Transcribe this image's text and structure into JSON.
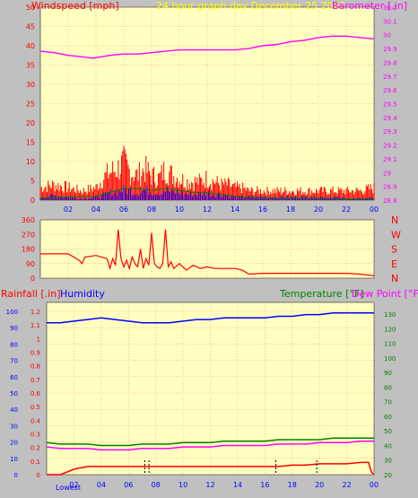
{
  "header": {
    "left_label": "Windspeed [mph]",
    "center_label": "24 hour graph day   December 25 2021",
    "right_label": "Barometer [.in]"
  },
  "colors": {
    "background": "#c0c0c0",
    "plot_bg": "#ffffc0",
    "grid": "#ff8080",
    "wind": "#ff0000",
    "gust_blue": "#0000ff",
    "gust_green": "#008000",
    "barometer": "#ff00ff",
    "direction": "#ff0000",
    "humidity": "#0000ff",
    "temperature": "#008000",
    "dewpoint": "#ff00ff",
    "rain": "#ff0000",
    "title_yellow": "#ffff00"
  },
  "chart_data": [
    {
      "type": "line",
      "panel": "wind_barometer",
      "x_ticks": [
        "02",
        "04",
        "06",
        "08",
        "10",
        "12",
        "14",
        "16",
        "18",
        "20",
        "22",
        "00"
      ],
      "y_left": {
        "label": "Windspeed [mph]",
        "ylim": [
          0,
          50
        ],
        "ticks": [
          "0",
          "5",
          "10",
          "15",
          "20",
          "25",
          "30",
          "35",
          "40",
          "45",
          "50"
        ]
      },
      "y_right": {
        "label": "Barometer [.in]",
        "ylim": [
          28.8,
          30.2
        ],
        "ticks": [
          "28.8",
          "28.9",
          "29",
          "29.1",
          "29.2",
          "29.3",
          "29.4",
          "29.5",
          "29.6",
          "29.7",
          "29.8",
          "29.9",
          "30",
          "30.1",
          "30.2"
        ]
      },
      "series": [
        {
          "name": "Barometer",
          "axis": "right",
          "x": [
            0,
            1,
            2,
            3,
            3.8,
            5,
            6,
            7,
            8,
            9,
            10,
            11,
            12,
            13,
            14,
            15,
            16,
            17,
            18,
            19,
            20,
            21,
            22,
            23,
            24
          ],
          "values": [
            29.88,
            29.87,
            29.85,
            29.84,
            29.83,
            29.85,
            29.86,
            29.86,
            29.87,
            29.88,
            29.89,
            29.89,
            29.89,
            29.89,
            29.89,
            29.9,
            29.92,
            29.93,
            29.95,
            29.96,
            29.98,
            29.99,
            29.99,
            29.98,
            29.97
          ]
        },
        {
          "name": "Windspeed",
          "axis": "left",
          "x": [
            0,
            1,
            2,
            3,
            4,
            4.5,
            5,
            5.5,
            6,
            6.5,
            7,
            7.5,
            8,
            8.5,
            9,
            9.5,
            10,
            10.5,
            11,
            11.5,
            12,
            12.5,
            13,
            13.5,
            14,
            14.5,
            15,
            16,
            17,
            18,
            19,
            20,
            21,
            22,
            23,
            24
          ],
          "values": [
            2,
            3,
            2,
            1,
            2,
            3,
            5,
            6,
            7,
            6,
            5,
            7,
            6,
            5,
            7,
            5,
            5,
            4,
            4,
            4,
            5,
            4,
            4,
            3,
            2,
            2,
            2,
            2,
            2,
            2,
            2,
            2,
            2,
            1,
            1,
            2
          ]
        },
        {
          "name": "Gust",
          "axis": "left",
          "x": [
            0,
            1,
            2,
            3,
            4,
            4.5,
            5,
            5.5,
            6,
            6.5,
            7,
            7.5,
            8,
            8.5,
            9,
            9.5,
            10,
            10.5,
            11,
            11.5,
            12,
            12.5,
            13,
            13.5,
            14,
            14.5,
            15,
            16,
            17,
            18,
            19,
            20,
            21,
            22,
            23,
            24
          ],
          "values": [
            4,
            5,
            4,
            3,
            4,
            7,
            9,
            10,
            12,
            9,
            8,
            10,
            8,
            7,
            10,
            8,
            7,
            6,
            6,
            6,
            7,
            6,
            5,
            5,
            4,
            4,
            3,
            3,
            3,
            3,
            3,
            3,
            3,
            3,
            3,
            4
          ]
        },
        {
          "name": "Average",
          "axis": "left",
          "x": [
            0,
            2,
            4,
            5,
            6,
            7,
            8,
            9,
            10,
            11,
            12,
            13,
            14,
            16,
            18,
            20,
            22,
            24
          ],
          "values": [
            0.5,
            0.8,
            1,
            2,
            3,
            3,
            2.5,
            3,
            2.5,
            2,
            2,
            1.5,
            1,
            0.5,
            0.5,
            0.5,
            0.3,
            0.3
          ]
        }
      ]
    },
    {
      "type": "line",
      "panel": "wind_direction",
      "x_ticks": [],
      "y_left": {
        "ylim": [
          0,
          360
        ],
        "ticks": [
          "0",
          "90",
          "180",
          "270",
          "360"
        ]
      },
      "y_right": {
        "ticks": [
          "N",
          "W",
          "S",
          "E",
          "N"
        ]
      },
      "series": [
        {
          "name": "Direction",
          "x": [
            0,
            2,
            2.8,
            3,
            3.2,
            4,
            4.8,
            5,
            5.2,
            5.4,
            5.6,
            5.8,
            6,
            6.2,
            6.4,
            6.6,
            6.8,
            7,
            7.2,
            7.4,
            7.6,
            7.8,
            8,
            8.2,
            8.4,
            8.6,
            8.8,
            9,
            9.2,
            9.4,
            9.6,
            10,
            10.5,
            11,
            11.5,
            12,
            12.5,
            13,
            14,
            14.5,
            15,
            16,
            17,
            18,
            19,
            20,
            21,
            22,
            23,
            24
          ],
          "values": [
            150,
            150,
            110,
            90,
            130,
            140,
            120,
            60,
            120,
            80,
            300,
            120,
            70,
            110,
            60,
            130,
            90,
            70,
            180,
            60,
            120,
            80,
            280,
            90,
            70,
            60,
            90,
            300,
            70,
            100,
            60,
            90,
            50,
            80,
            60,
            70,
            60,
            60,
            60,
            50,
            25,
            30,
            30,
            30,
            30,
            30,
            30,
            30,
            25,
            15
          ]
        }
      ]
    },
    {
      "type": "line",
      "panel": "rain_humidity_temperature",
      "labels": {
        "rainfall": "Rainfall [.in]",
        "humidity": "Humidity",
        "temperature": "Temperature [°F]",
        "dewpoint": "Dew Point [°F]",
        "lowest": "Lowest"
      },
      "x_ticks": [
        "02",
        "04",
        "06",
        "08",
        "10",
        "12",
        "14",
        "16",
        "18",
        "20",
        "22",
        "00"
      ],
      "y_humidity": {
        "ylim": [
          0,
          100
        ],
        "ticks": [
          "0",
          "10",
          "20",
          "30",
          "40",
          "50",
          "60",
          "70",
          "80",
          "90",
          "100"
        ]
      },
      "y_rain": {
        "ylim": [
          0,
          1.2
        ],
        "ticks": [
          "0",
          "0.1",
          "0.2",
          "0.3",
          "0.4",
          "0.5",
          "0.6",
          "0.7",
          "0.8",
          "0.9",
          "1",
          "1.1",
          "1.2"
        ]
      },
      "y_temperature": {
        "ylim": [
          20,
          135
        ],
        "ticks": [
          "20",
          "30",
          "40",
          "50",
          "60",
          "70",
          "80",
          "90",
          "100",
          "110",
          "120",
          "130"
        ]
      },
      "series": [
        {
          "name": "Humidity",
          "x": [
            0,
            1,
            2,
            3,
            4,
            5,
            6,
            7,
            8,
            9,
            10,
            11,
            12,
            13,
            14,
            15,
            16,
            17,
            18,
            19,
            20,
            21,
            22,
            23,
            24
          ],
          "values": [
            93,
            93,
            94,
            95,
            96,
            95,
            94,
            93,
            93,
            93,
            94,
            95,
            95,
            96,
            96,
            96,
            96,
            97,
            97,
            98,
            98,
            99,
            99,
            99,
            99
          ]
        },
        {
          "name": "Temperature",
          "x": [
            0,
            1,
            2,
            3,
            4,
            5,
            6,
            7,
            8,
            9,
            10,
            11,
            12,
            13,
            14,
            15,
            16,
            17,
            18,
            19,
            20,
            21,
            22,
            23,
            24
          ],
          "values": [
            42,
            41,
            41,
            41,
            40,
            40,
            40,
            41,
            41,
            41,
            42,
            42,
            42,
            43,
            43,
            43,
            43,
            44,
            44,
            44,
            44,
            45,
            45,
            45,
            45
          ]
        },
        {
          "name": "Dew Point",
          "x": [
            0,
            1,
            2,
            3,
            4,
            5,
            6,
            7,
            8,
            9,
            10,
            11,
            12,
            13,
            14,
            15,
            16,
            17,
            18,
            19,
            20,
            21,
            22,
            23,
            24
          ],
          "values": [
            39,
            38,
            38,
            38,
            37,
            37,
            37,
            38,
            38,
            38,
            39,
            39,
            39,
            40,
            40,
            40,
            40,
            41,
            41,
            41,
            42,
            42,
            42,
            43,
            43
          ]
        },
        {
          "name": "Rainfall",
          "x": [
            0,
            1,
            1.5,
            2,
            2.5,
            3,
            4,
            5,
            6,
            7,
            8,
            9,
            10,
            11,
            12,
            13,
            14,
            15,
            16,
            17,
            18,
            19,
            20,
            21,
            22,
            23,
            23.6,
            23.8,
            24
          ],
          "values": [
            0,
            0,
            0.02,
            0.04,
            0.05,
            0.06,
            0.06,
            0.06,
            0.06,
            0.06,
            0.06,
            0.06,
            0.06,
            0.06,
            0.06,
            0.06,
            0.06,
            0.06,
            0.06,
            0.06,
            0.07,
            0.07,
            0.08,
            0.08,
            0.08,
            0.09,
            0.09,
            0.02,
            0
          ]
        }
      ],
      "markers_x": [
        7.2,
        7.5,
        16.8,
        19.8
      ]
    }
  ]
}
